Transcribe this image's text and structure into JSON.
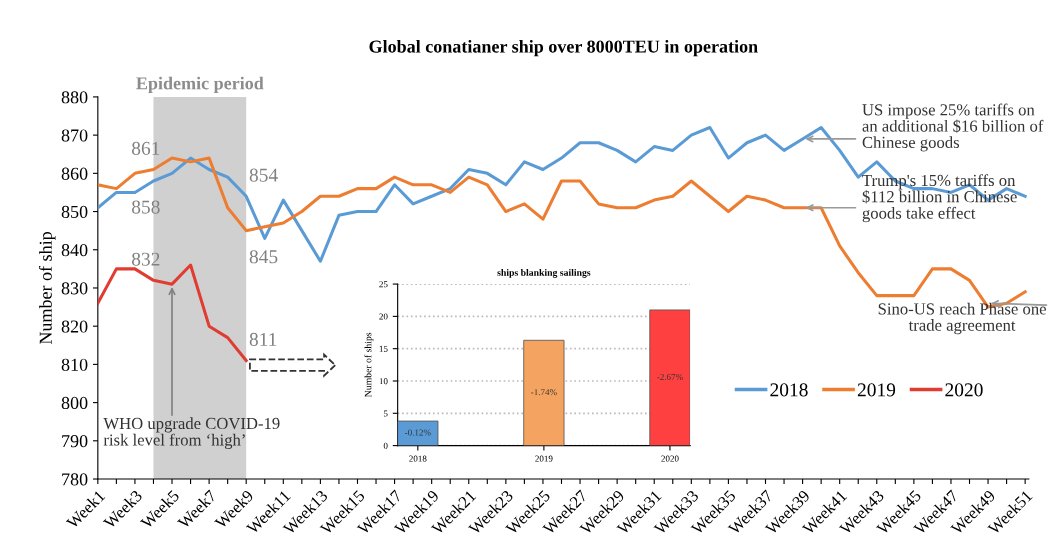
{
  "chart_data": [
    {
      "type": "line",
      "title": "Global conatianer ship over 8000TEU in operation",
      "ylabel": "Number of ship",
      "categories": [
        "Week1",
        null,
        "Week3",
        null,
        "Week5",
        null,
        "Week7",
        null,
        "Week9",
        null,
        "Week11",
        null,
        "Week13",
        null,
        "Week15",
        null,
        "Week17",
        null,
        "Week19",
        null,
        "Week21",
        null,
        "Week23",
        null,
        "Week25",
        null,
        "Week27",
        null,
        "Week29",
        null,
        "Week31",
        null,
        "Week33",
        null,
        "Week35",
        null,
        "Week37",
        null,
        "Week39",
        null,
        "Week41",
        null,
        "Week43",
        null,
        "Week45",
        null,
        "Week47",
        null,
        "Week49",
        null,
        "Week51"
      ],
      "series": [
        {
          "name": "2018",
          "color": "#5b9bd5",
          "values": [
            851,
            855,
            855,
            858,
            860,
            864,
            861,
            859,
            854,
            843,
            853,
            845,
            837,
            849,
            850,
            850,
            857,
            852,
            854,
            856,
            861,
            860,
            857,
            863,
            861,
            864,
            868,
            868,
            866,
            863,
            867,
            866,
            870,
            872,
            864,
            868,
            870,
            866,
            869,
            872,
            866,
            859,
            863,
            858,
            856,
            856,
            855,
            857,
            853,
            856,
            854
          ],
          "value_labels": [
            null,
            null,
            null,
            "858",
            null,
            null,
            null,
            null,
            "854",
            null,
            null,
            null,
            null,
            null,
            null,
            null,
            null,
            null,
            null,
            null,
            null,
            null,
            null,
            null,
            null,
            null,
            null,
            null,
            null,
            null,
            null,
            null,
            null,
            null,
            null,
            null,
            null,
            null,
            null,
            null,
            null,
            null,
            null,
            null,
            null,
            null,
            null,
            null,
            null,
            null,
            null
          ]
        },
        {
          "name": "2019",
          "color": "#ed7d31",
          "values": [
            857,
            856,
            860,
            861,
            864,
            863,
            864,
            851,
            845,
            846,
            847,
            850,
            854,
            854,
            856,
            856,
            859,
            857,
            857,
            855,
            859,
            857,
            850,
            852,
            848,
            858,
            858,
            852,
            851,
            851,
            853,
            854,
            858,
            854,
            850,
            854,
            853,
            851,
            851,
            851,
            841,
            834,
            828,
            828,
            828,
            835,
            835,
            832,
            825,
            826,
            829
          ],
          "value_labels": [
            null,
            null,
            null,
            "861",
            null,
            null,
            null,
            null,
            "845",
            null,
            null,
            null,
            null,
            null,
            null,
            null,
            null,
            null,
            null,
            null,
            null,
            null,
            null,
            null,
            null,
            null,
            null,
            null,
            null,
            null,
            null,
            null,
            null,
            null,
            null,
            null,
            null,
            null,
            null,
            null,
            null,
            null,
            null,
            null,
            null,
            null,
            null,
            null,
            null,
            null,
            null
          ]
        },
        {
          "name": "2020",
          "color": "#e03c31",
          "values": [
            826,
            835,
            835,
            832,
            831,
            836,
            820,
            817,
            811,
            null,
            null,
            null,
            null,
            null,
            null,
            null,
            null,
            null,
            null,
            null,
            null,
            null,
            null,
            null,
            null,
            null,
            null,
            null,
            null,
            null,
            null,
            null,
            null,
            null,
            null,
            null,
            null,
            null,
            null,
            null,
            null,
            null,
            null,
            null,
            null,
            null,
            null,
            null,
            null,
            null,
            null
          ],
          "value_labels": [
            null,
            null,
            null,
            "832",
            null,
            null,
            null,
            null,
            "811",
            null,
            null,
            null,
            null,
            null,
            null,
            null,
            null,
            null,
            null,
            null,
            null,
            null,
            null,
            null,
            null,
            null,
            null,
            null,
            null,
            null,
            null,
            null,
            null,
            null,
            null,
            null,
            null,
            null,
            null,
            null,
            null,
            null,
            null,
            null,
            null,
            null,
            null,
            null,
            null,
            null,
            null
          ]
        }
      ],
      "ylim": [
        780,
        880
      ],
      "yticks": [
        780,
        790,
        800,
        810,
        820,
        830,
        840,
        850,
        860,
        870,
        880
      ],
      "annotations": [
        "Epidemic period",
        {
          "text": "US impose 25% tariffs on an additional $16 billion of Chinese goods",
          "x": "Week39",
          "y": 869
        },
        {
          "text": "Trump's 15% tariffs on $112 billion in Chinese goods take effect",
          "x": "Week39",
          "y": 851
        },
        {
          "text": "Sino-US reach Phase one trade agreement",
          "x": "Week49",
          "y": 826
        },
        {
          "text": "WHO upgrade COVID-19 risk level from ‘high’",
          "x": "Week5",
          "y": 831
        }
      ],
      "legend": "bottom right",
      "grid": false,
      "marker": "none",
      "line_style": "solid"
    },
    {
      "type": "bar",
      "title": "ships blanking sailings",
      "ylabel": "Number of ships",
      "categories": [
        "2018",
        "2019",
        "2020"
      ],
      "values": [
        3.8,
        16.3,
        21
      ],
      "colors": [
        "#5b9bd5",
        "#f4a460",
        "#ff4040"
      ],
      "annotations": [
        "-0.12%",
        "-1.74%",
        "-2.67%"
      ],
      "ylim": [
        0,
        25
      ],
      "yticks": [
        0,
        5,
        10,
        15,
        20,
        25
      ],
      "grid": "y"
    }
  ]
}
